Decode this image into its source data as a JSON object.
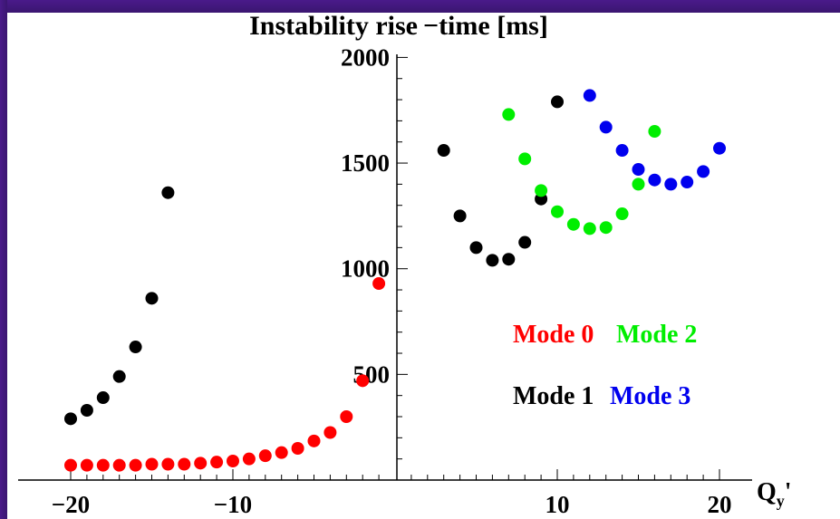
{
  "chart_data": {
    "type": "scatter",
    "title": "Instability rise −time [ms]",
    "xlabel": "Q",
    "xlabel_sub": "y",
    "xlabel_prime": "'",
    "ylabel": "",
    "xlim": [
      -21,
      21
    ],
    "ylim": [
      0,
      2050
    ],
    "x_ticks": [
      {
        "value": -20,
        "label": "−20"
      },
      {
        "value": -10,
        "label": "−10"
      },
      {
        "value": 10,
        "label": "10"
      },
      {
        "value": 20,
        "label": "20"
      }
    ],
    "y_ticks": [
      {
        "value": 500,
        "label": "500"
      },
      {
        "value": 1000,
        "label": "1000"
      },
      {
        "value": 1500,
        "label": "1500"
      },
      {
        "value": 2000,
        "label": "2000"
      }
    ],
    "grid": false,
    "legend_position": "lower-right",
    "series": [
      {
        "name": "Mode 0",
        "color": "#ff0000",
        "points": [
          [
            -20,
            70
          ],
          [
            -19,
            70
          ],
          [
            -18,
            70
          ],
          [
            -17,
            70
          ],
          [
            -16,
            70
          ],
          [
            -15,
            75
          ],
          [
            -14,
            75
          ],
          [
            -13,
            75
          ],
          [
            -12,
            80
          ],
          [
            -11,
            85
          ],
          [
            -10,
            90
          ],
          [
            -9,
            100
          ],
          [
            -8,
            115
          ],
          [
            -7,
            130
          ],
          [
            -6,
            150
          ],
          [
            -5,
            185
          ],
          [
            -4,
            225
          ],
          [
            -3,
            300
          ],
          [
            -2,
            470
          ],
          [
            -1,
            930
          ]
        ]
      },
      {
        "name": "Mode 1",
        "color": "#000000",
        "points": [
          [
            -20,
            290
          ],
          [
            -19,
            330
          ],
          [
            -18,
            390
          ],
          [
            -17,
            490
          ],
          [
            -16,
            630
          ],
          [
            -15,
            860
          ],
          [
            -14,
            1360
          ],
          [
            3,
            1560
          ],
          [
            4,
            1250
          ],
          [
            5,
            1100
          ],
          [
            6,
            1040
          ],
          [
            7,
            1045
          ],
          [
            8,
            1125
          ],
          [
            9,
            1330
          ],
          [
            10,
            1790
          ]
        ]
      },
      {
        "name": "Mode 2",
        "color": "#00ee00",
        "points": [
          [
            7,
            1730
          ],
          [
            8,
            1520
          ],
          [
            9,
            1370
          ],
          [
            10,
            1270
          ],
          [
            11,
            1210
          ],
          [
            12,
            1190
          ],
          [
            13,
            1195
          ],
          [
            14,
            1260
          ],
          [
            15,
            1400
          ],
          [
            16,
            1650
          ]
        ]
      },
      {
        "name": "Mode 3",
        "color": "#0000ee",
        "points": [
          [
            12,
            1820
          ],
          [
            13,
            1670
          ],
          [
            14,
            1560
          ],
          [
            15,
            1470
          ],
          [
            16,
            1420
          ],
          [
            17,
            1400
          ],
          [
            18,
            1410
          ],
          [
            19,
            1460
          ],
          [
            20,
            1570
          ]
        ]
      }
    ],
    "legend": [
      {
        "label": "Mode 0",
        "color": "#ff0000"
      },
      {
        "label": "Mode 2",
        "color": "#00ee00"
      },
      {
        "label": "Mode 1",
        "color": "#000000"
      },
      {
        "label": "Mode 3",
        "color": "#0000ee"
      }
    ]
  }
}
